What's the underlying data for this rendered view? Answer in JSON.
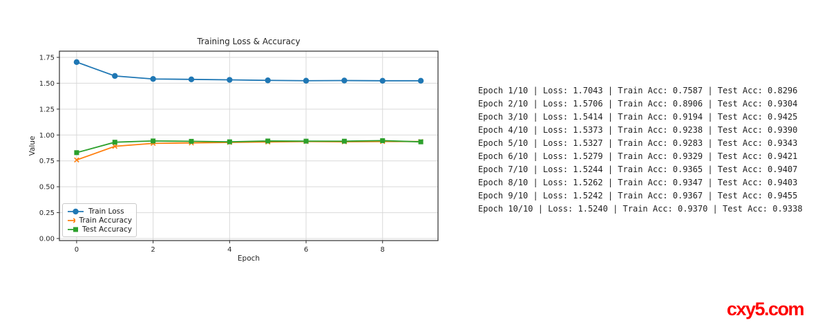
{
  "chart_data": {
    "type": "line",
    "title": "Training Loss & Accuracy",
    "xlabel": "Epoch",
    "ylabel": "Value",
    "x": [
      0,
      1,
      2,
      3,
      4,
      5,
      6,
      7,
      8,
      9
    ],
    "series": [
      {
        "name": "Train Loss",
        "color": "#1f77b4",
        "marker": "circle",
        "values": [
          1.7043,
          1.5706,
          1.5414,
          1.5373,
          1.5327,
          1.5279,
          1.5244,
          1.5262,
          1.5242,
          1.524
        ]
      },
      {
        "name": "Train Accuracy",
        "color": "#ff7f0e",
        "marker": "x",
        "values": [
          0.7587,
          0.8906,
          0.9194,
          0.9238,
          0.9283,
          0.9329,
          0.9365,
          0.9347,
          0.9367,
          0.937
        ]
      },
      {
        "name": "Test Accuracy",
        "color": "#2ca02c",
        "marker": "square",
        "values": [
          0.8296,
          0.9304,
          0.9425,
          0.939,
          0.9343,
          0.9421,
          0.9407,
          0.9403,
          0.9455,
          0.9338
        ]
      }
    ],
    "xticks": [
      0,
      2,
      4,
      6,
      8
    ],
    "yticks": [
      0,
      0.25,
      0.5,
      0.75,
      1.0,
      1.25,
      1.5,
      1.75
    ],
    "xlim": [
      -0.45,
      9.45
    ],
    "ylim": [
      -0.02,
      1.81
    ],
    "grid": true,
    "legend_position": "lower left",
    "grid_color": "#d9d9d9",
    "spine_color": "#2e2e2e",
    "text_color": "#262626"
  },
  "log": {
    "lines": [
      "Epoch 1/10 | Loss: 1.7043 | Train Acc: 0.7587 | Test Acc: 0.8296",
      "Epoch 2/10 | Loss: 1.5706 | Train Acc: 0.8906 | Test Acc: 0.9304",
      "Epoch 3/10 | Loss: 1.5414 | Train Acc: 0.9194 | Test Acc: 0.9425",
      "Epoch 4/10 | Loss: 1.5373 | Train Acc: 0.9238 | Test Acc: 0.9390",
      "Epoch 5/10 | Loss: 1.5327 | Train Acc: 0.9283 | Test Acc: 0.9343",
      "Epoch 6/10 | Loss: 1.5279 | Train Acc: 0.9329 | Test Acc: 0.9421",
      "Epoch 7/10 | Loss: 1.5244 | Train Acc: 0.9365 | Test Acc: 0.9407",
      "Epoch 8/10 | Loss: 1.5262 | Train Acc: 0.9347 | Test Acc: 0.9403",
      "Epoch 9/10 | Loss: 1.5242 | Train Acc: 0.9367 | Test Acc: 0.9455",
      "Epoch 10/10 | Loss: 1.5240 | Train Acc: 0.9370 | Test Acc: 0.9338"
    ]
  },
  "watermark": {
    "text": "cxy5.com",
    "color": "#fe0000"
  }
}
